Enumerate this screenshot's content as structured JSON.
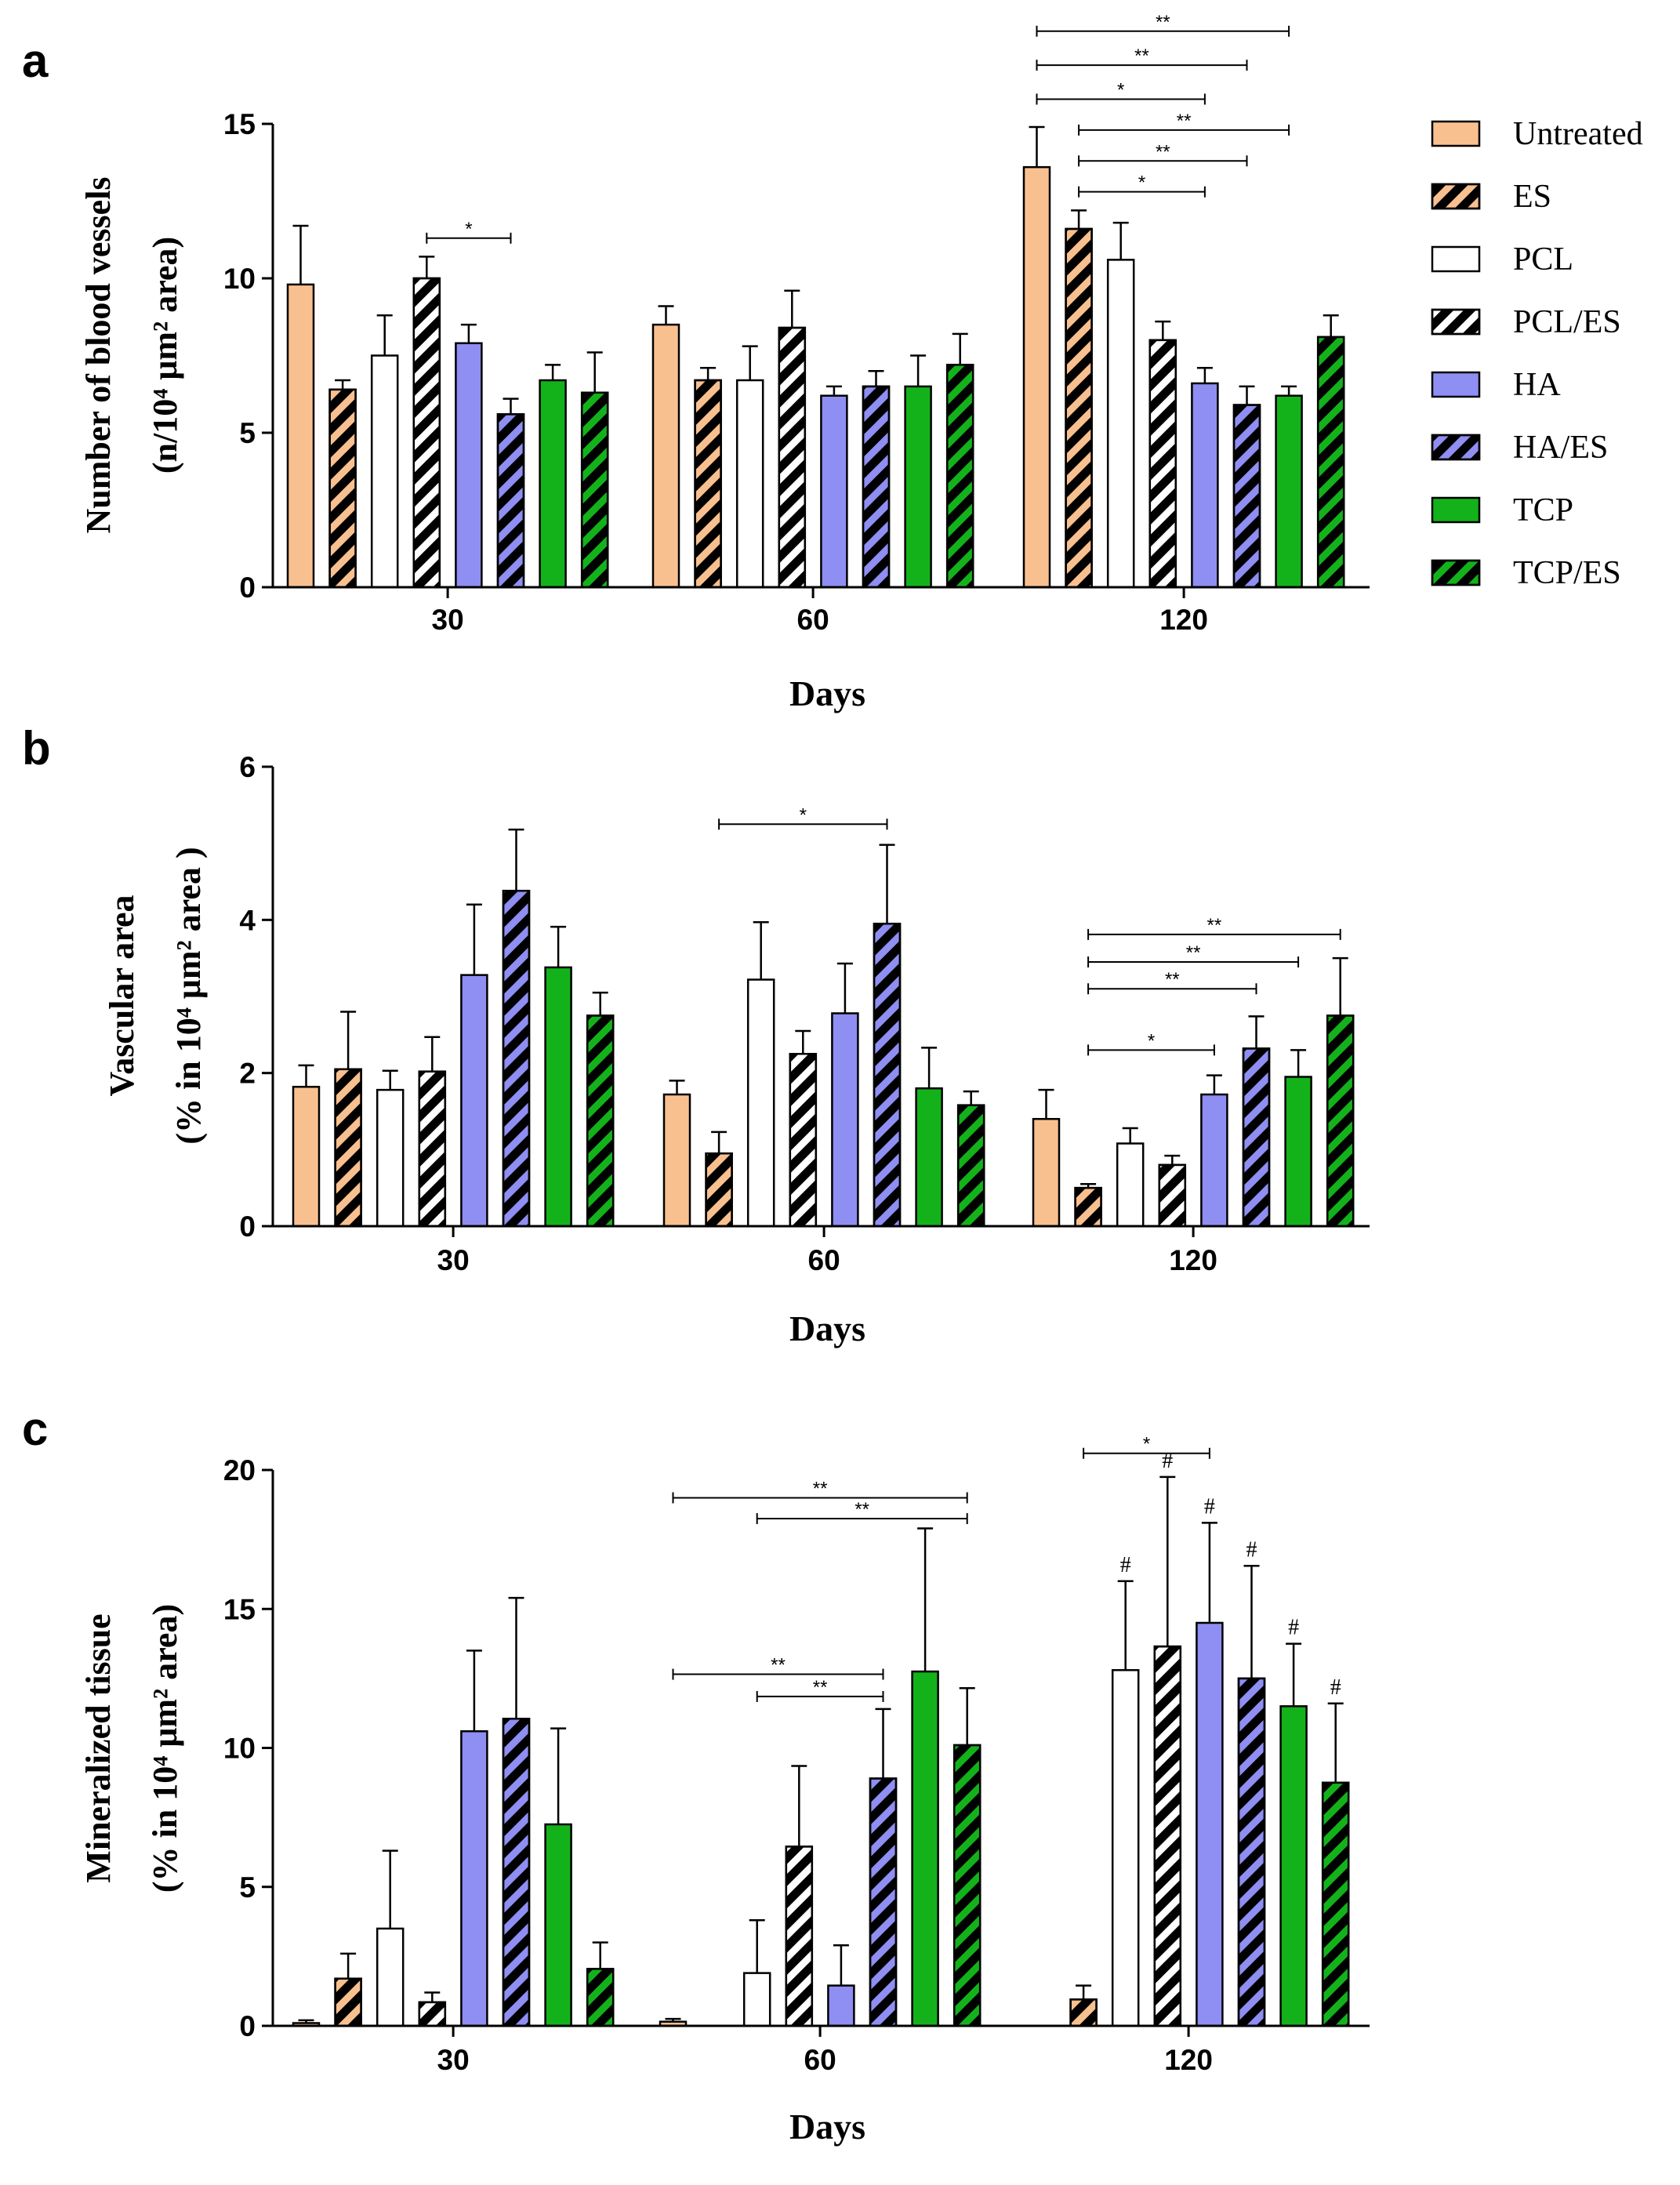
{
  "legend": [
    {
      "label": "Untreated",
      "color": "#F9C08F",
      "hatch": false
    },
    {
      "label": "ES",
      "color": "#F9C08F",
      "hatch": true
    },
    {
      "label": "PCL",
      "color": "#FFFFFF",
      "hatch": false
    },
    {
      "label": "PCL/ES",
      "color": "#FFFFFF",
      "hatch": true
    },
    {
      "label": "HA",
      "color": "#8F8EF2",
      "hatch": false
    },
    {
      "label": "HA/ES",
      "color": "#8F8EF2",
      "hatch": true
    },
    {
      "label": "TCP",
      "color": "#13B21B",
      "hatch": false
    },
    {
      "label": "TCP/ES",
      "color": "#13B21B",
      "hatch": true
    }
  ],
  "chart_data": [
    {
      "panel": "a",
      "type": "bar",
      "xlabel": "Days",
      "ylabel_line1": "Number of blood vessels",
      "ylabel_line2": "(n/10⁴ μm² area)",
      "ylim": [
        0,
        15
      ],
      "yticks": [
        "0",
        "5",
        "10",
        "15"
      ],
      "categories": [
        "30",
        "60",
        "120"
      ],
      "series": [
        {
          "name": "Untreated",
          "values": [
            9.8,
            8.5,
            13.6
          ],
          "errors": [
            1.9,
            0.6,
            1.3
          ]
        },
        {
          "name": "ES",
          "values": [
            6.4,
            6.7,
            11.6
          ],
          "errors": [
            0.3,
            0.4,
            0.6
          ]
        },
        {
          "name": "PCL",
          "values": [
            7.5,
            6.7,
            10.6
          ],
          "errors": [
            1.3,
            1.1,
            1.2
          ]
        },
        {
          "name": "PCL/ES",
          "values": [
            10.0,
            8.4,
            8.0
          ],
          "errors": [
            0.7,
            1.2,
            0.6
          ]
        },
        {
          "name": "HA",
          "values": [
            7.9,
            6.2,
            6.6
          ],
          "errors": [
            0.6,
            0.3,
            0.5
          ]
        },
        {
          "name": "HA/ES",
          "values": [
            5.6,
            6.5,
            5.9
          ],
          "errors": [
            0.5,
            0.5,
            0.6
          ]
        },
        {
          "name": "TCP",
          "values": [
            6.7,
            6.5,
            6.2
          ],
          "errors": [
            0.5,
            1.0,
            0.3
          ]
        },
        {
          "name": "TCP/ES",
          "values": [
            6.3,
            7.2,
            8.1
          ],
          "errors": [
            1.3,
            1.0,
            0.7
          ]
        }
      ],
      "significance": [
        {
          "group": 0,
          "from": 3,
          "to": 5,
          "y": 11.3,
          "label": "*"
        },
        {
          "group": 2,
          "from": 0,
          "to": 6,
          "y": 18.0,
          "label": "**"
        },
        {
          "group": 2,
          "from": 0,
          "to": 5,
          "y": 16.9,
          "label": "**"
        },
        {
          "group": 2,
          "from": 0,
          "to": 4,
          "y": 15.8,
          "label": "*"
        },
        {
          "group": 2,
          "from": 1,
          "to": 6,
          "y": 14.8,
          "label": "**"
        },
        {
          "group": 2,
          "from": 1,
          "to": 5,
          "y": 13.8,
          "label": "**"
        },
        {
          "group": 2,
          "from": 1,
          "to": 4,
          "y": 12.8,
          "label": "*"
        }
      ],
      "annotations": []
    },
    {
      "panel": "b",
      "type": "bar",
      "xlabel": "Days",
      "ylabel_line1": "Vascular area",
      "ylabel_line2": "(% in 10⁴ μm² area )",
      "ylim": [
        0,
        6
      ],
      "yticks": [
        "0",
        "2",
        "4",
        "6"
      ],
      "categories": [
        "30",
        "60",
        "120"
      ],
      "series": [
        {
          "name": "Untreated",
          "values": [
            1.82,
            1.72,
            1.4
          ],
          "errors": [
            0.28,
            0.18,
            0.38
          ]
        },
        {
          "name": "ES",
          "values": [
            2.05,
            0.95,
            0.5
          ],
          "errors": [
            0.75,
            0.28,
            0.05
          ]
        },
        {
          "name": "PCL",
          "values": [
            1.78,
            3.22,
            1.08
          ],
          "errors": [
            0.25,
            0.75,
            0.2
          ]
        },
        {
          "name": "PCL/ES",
          "values": [
            2.02,
            2.25,
            0.8
          ],
          "errors": [
            0.45,
            0.3,
            0.12
          ]
        },
        {
          "name": "HA",
          "values": [
            3.28,
            2.78,
            1.72
          ],
          "errors": [
            0.92,
            0.65,
            0.25
          ]
        },
        {
          "name": "HA/ES",
          "values": [
            4.38,
            3.95,
            2.32
          ],
          "errors": [
            0.8,
            1.03,
            0.42
          ]
        },
        {
          "name": "TCP",
          "values": [
            3.38,
            1.8,
            1.95
          ],
          "errors": [
            0.53,
            0.53,
            0.35
          ]
        },
        {
          "name": "TCP/ES",
          "values": [
            2.75,
            1.58,
            2.75
          ],
          "errors": [
            0.3,
            0.18,
            0.75
          ]
        }
      ],
      "significance": [
        {
          "group": 1,
          "from": 1,
          "to": 5,
          "y": 5.25,
          "label": "*"
        },
        {
          "group": 2,
          "from": 1,
          "to": 7,
          "y": 3.81,
          "label": "**"
        },
        {
          "group": 2,
          "from": 1,
          "to": 6,
          "y": 3.45,
          "label": "**"
        },
        {
          "group": 2,
          "from": 1,
          "to": 5,
          "y": 3.1,
          "label": "**"
        },
        {
          "group": 2,
          "from": 1,
          "to": 4,
          "y": 2.3,
          "label": "*"
        }
      ],
      "annotations": []
    },
    {
      "panel": "c",
      "type": "bar",
      "xlabel": "Days",
      "ylabel_line1": "Mineralized tissue",
      "ylabel_line2": "(% in 10⁴ μm² area)",
      "ylim": [
        0,
        20
      ],
      "yticks": [
        "0",
        "5",
        "10",
        "15",
        "20"
      ],
      "categories": [
        "30",
        "60",
        "120"
      ],
      "series": [
        {
          "name": "Untreated",
          "values": [
            0.1,
            0.15,
            0.0
          ],
          "errors": [
            0.1,
            0.1,
            0.0
          ]
        },
        {
          "name": "ES",
          "values": [
            1.7,
            0.0,
            0.95
          ],
          "errors": [
            0.9,
            0.0,
            0.5
          ]
        },
        {
          "name": "PCL",
          "values": [
            3.5,
            1.9,
            12.8
          ],
          "errors": [
            2.8,
            1.9,
            3.2
          ]
        },
        {
          "name": "PCL/ES",
          "values": [
            0.85,
            6.45,
            13.65
          ],
          "errors": [
            0.35,
            2.9,
            6.1
          ]
        },
        {
          "name": "HA",
          "values": [
            10.6,
            1.45,
            14.5
          ],
          "errors": [
            2.9,
            1.45,
            3.6
          ]
        },
        {
          "name": "HA/ES",
          "values": [
            11.05,
            8.9,
            12.5
          ],
          "errors": [
            4.35,
            2.5,
            4.05
          ]
        },
        {
          "name": "TCP",
          "values": [
            7.25,
            12.75,
            11.5
          ],
          "errors": [
            3.45,
            5.15,
            2.25
          ]
        },
        {
          "name": "TCP/ES",
          "values": [
            2.05,
            10.1,
            8.75
          ],
          "errors": [
            0.95,
            2.05,
            2.85
          ]
        }
      ],
      "significance": [
        {
          "group": 1,
          "from": 0,
          "to": 7,
          "y": 19.0,
          "label": "**"
        },
        {
          "group": 1,
          "from": 2,
          "to": 7,
          "y": 18.25,
          "label": "**"
        },
        {
          "group": 1,
          "from": 0,
          "to": 5,
          "y": 12.65,
          "label": "**"
        },
        {
          "group": 1,
          "from": 2,
          "to": 5,
          "y": 11.85,
          "label": "**"
        },
        {
          "group": 2,
          "from": 1,
          "to": 4,
          "y": 20.6,
          "label": "*"
        }
      ],
      "annotations": [
        {
          "group": 2,
          "bar": 2,
          "label": "#"
        },
        {
          "group": 2,
          "bar": 3,
          "label": "#"
        },
        {
          "group": 2,
          "bar": 4,
          "label": "#"
        },
        {
          "group": 2,
          "bar": 5,
          "label": "#"
        },
        {
          "group": 2,
          "bar": 6,
          "label": "#"
        },
        {
          "group": 2,
          "bar": 7,
          "label": "#"
        }
      ]
    }
  ]
}
